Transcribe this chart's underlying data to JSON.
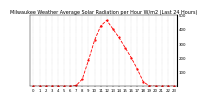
{
  "title": "Milwaukee Weather Average Solar Radiation per Hour W/m2 (Last 24 Hours)",
  "x_values": [
    0,
    1,
    2,
    3,
    4,
    5,
    6,
    7,
    8,
    9,
    10,
    11,
    12,
    13,
    14,
    15,
    16,
    17,
    18,
    19,
    20,
    21,
    22,
    23
  ],
  "y_values": [
    0,
    0,
    0,
    0,
    0,
    0,
    0,
    5,
    50,
    180,
    320,
    420,
    460,
    400,
    340,
    270,
    200,
    120,
    30,
    2,
    0,
    0,
    0,
    0
  ],
  "line_color": "#ff0000",
  "line_style": "--",
  "line_width": 0.6,
  "marker": ".",
  "marker_size": 1.2,
  "grid_color": "#bbbbbb",
  "grid_style": ":",
  "background_color": "#ffffff",
  "ylim": [
    0,
    500
  ],
  "xlim": [
    -0.5,
    23.5
  ],
  "ytick_values": [
    100,
    200,
    300,
    400,
    500
  ],
  "xtick_positions": [
    0,
    1,
    2,
    3,
    4,
    5,
    6,
    7,
    8,
    9,
    10,
    11,
    12,
    13,
    14,
    15,
    16,
    17,
    18,
    19,
    20,
    21,
    22,
    23
  ],
  "title_fontsize": 3.5,
  "tick_fontsize": 2.8
}
